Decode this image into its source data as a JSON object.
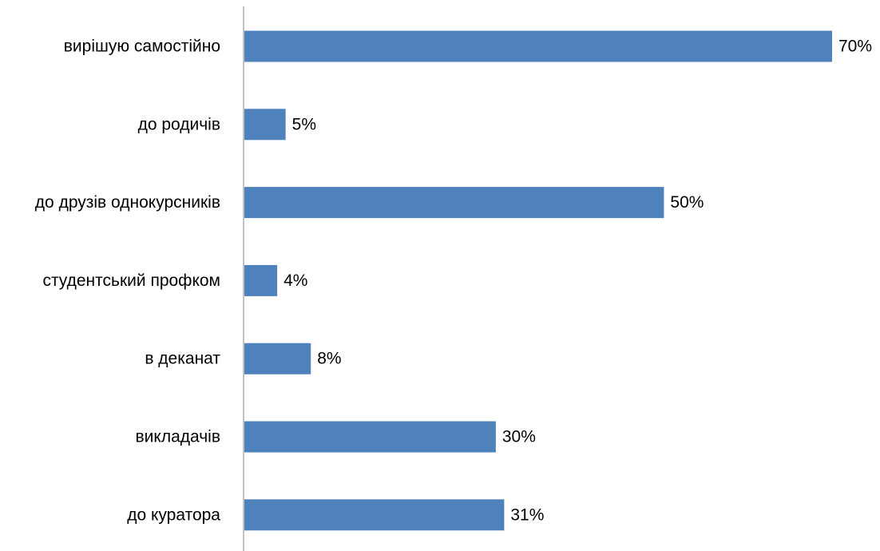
{
  "chart_data": {
    "type": "bar",
    "orientation": "horizontal",
    "categories": [
      "вирішую самостійно",
      "до родичів",
      "до друзів однокурсників",
      "студентський профком",
      "в деканат",
      "викладачів",
      "до куратора"
    ],
    "values": [
      70,
      5,
      50,
      4,
      8,
      30,
      31
    ],
    "value_labels": [
      "70%",
      "5%",
      "50%",
      "4%",
      "8%",
      "30%",
      "31%"
    ],
    "unit": "%",
    "xlim": [
      0,
      70
    ],
    "grid": false,
    "legend": "none",
    "bar_color": "#4F81BD",
    "axis_color": "#868686"
  }
}
